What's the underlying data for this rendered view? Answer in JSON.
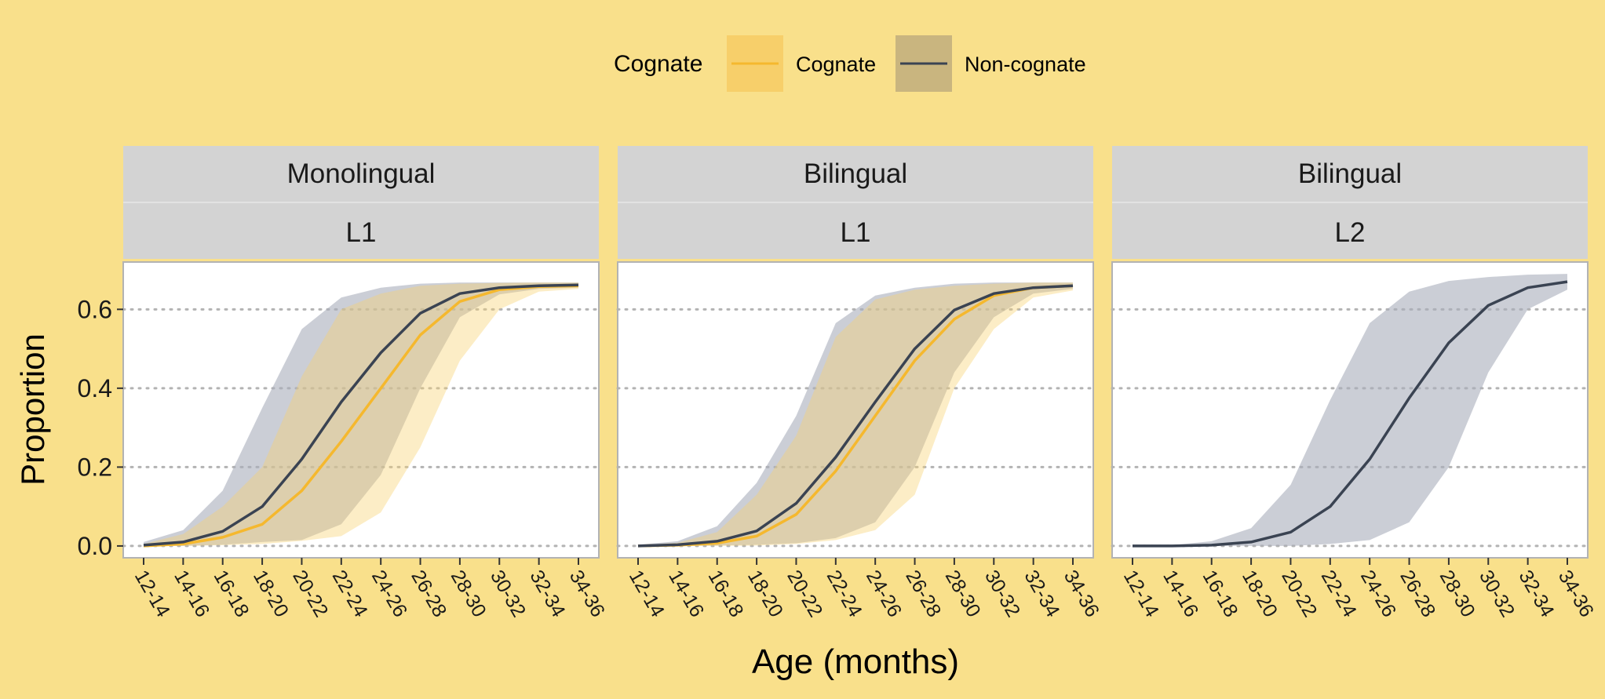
{
  "chart_data": {
    "type": "line",
    "xlabel": "Age (months)",
    "ylabel": "Proportion",
    "ylim": [
      -0.03,
      0.72
    ],
    "yticks": [
      0.0,
      0.2,
      0.4,
      0.6
    ],
    "ytick_labels": [
      "0.0",
      "0.2",
      "0.4",
      "0.6"
    ],
    "grid": "horizontal dotted",
    "categories": [
      "12-14",
      "14-16",
      "16-18",
      "18-20",
      "20-22",
      "22-24",
      "24-26",
      "26-28",
      "28-30",
      "30-32",
      "32-34",
      "34-36"
    ],
    "legend": {
      "title": "Cognate",
      "position": "top",
      "entries": [
        {
          "label": "Cognate",
          "line_color": "#f5b82e",
          "fill_color": "#f7cf6a"
        },
        {
          "label": "Non-cognate",
          "line_color": "#3a4352",
          "fill_color": "#c9b57f"
        }
      ]
    },
    "colors": {
      "background": "#f9e08b",
      "panel": "#ffffff",
      "strip": "#d3d3d3",
      "cognate_line": "#f5b82e",
      "cognate_band": "#fde7b4",
      "noncognate_line": "#3a4352",
      "noncognate_band": "#bfc5cf",
      "overlap_band": "#d6c89e"
    },
    "panels": [
      {
        "strip_top": "Monolingual",
        "strip_bottom": "L1",
        "series": [
          {
            "name": "Cognate",
            "values": [
              0.0,
              0.005,
              0.022,
              0.055,
              0.14,
              0.265,
              0.4,
              0.535,
              0.62,
              0.65,
              0.658,
              0.66
            ],
            "lower": [
              0.0,
              0.0,
              0.002,
              0.005,
              0.013,
              0.025,
              0.085,
              0.25,
              0.47,
              0.6,
              0.645,
              0.652
            ],
            "upper": [
              0.005,
              0.03,
              0.1,
              0.2,
              0.43,
              0.6,
              0.64,
              0.66,
              0.665,
              0.667,
              0.668,
              0.668
            ]
          },
          {
            "name": "Non-cognate",
            "values": [
              0.002,
              0.01,
              0.037,
              0.1,
              0.22,
              0.365,
              0.49,
              0.59,
              0.64,
              0.655,
              0.66,
              0.662
            ],
            "lower": [
              0.0,
              0.0,
              0.003,
              0.01,
              0.015,
              0.055,
              0.18,
              0.4,
              0.58,
              0.638,
              0.652,
              0.655
            ],
            "upper": [
              0.01,
              0.04,
              0.14,
              0.35,
              0.55,
              0.63,
              0.655,
              0.665,
              0.668,
              0.668,
              0.668,
              0.668
            ]
          }
        ]
      },
      {
        "strip_top": "Bilingual",
        "strip_bottom": "L1",
        "series": [
          {
            "name": "Cognate",
            "values": [
              0.0,
              0.002,
              0.007,
              0.025,
              0.08,
              0.19,
              0.33,
              0.47,
              0.575,
              0.635,
              0.655,
              0.66
            ],
            "lower": [
              0.0,
              0.0,
              0.0,
              0.001,
              0.005,
              0.015,
              0.04,
              0.13,
              0.4,
              0.55,
              0.63,
              0.648
            ],
            "upper": [
              0.002,
              0.008,
              0.035,
              0.13,
              0.28,
              0.53,
              0.625,
              0.65,
              0.66,
              0.665,
              0.668,
              0.668
            ]
          },
          {
            "name": "Non-cognate",
            "values": [
              0.0,
              0.003,
              0.012,
              0.038,
              0.108,
              0.225,
              0.365,
              0.5,
              0.598,
              0.64,
              0.655,
              0.66
            ],
            "lower": [
              0.0,
              0.0,
              0.001,
              0.003,
              0.007,
              0.02,
              0.06,
              0.2,
              0.44,
              0.58,
              0.64,
              0.652
            ],
            "upper": [
              0.003,
              0.012,
              0.05,
              0.16,
              0.33,
              0.565,
              0.635,
              0.655,
              0.665,
              0.668,
              0.668,
              0.668
            ]
          }
        ]
      },
      {
        "strip_top": "Bilingual",
        "strip_bottom": "L2",
        "series": [
          {
            "name": "Non-cognate",
            "values": [
              0.0,
              0.0,
              0.002,
              0.01,
              0.035,
              0.1,
              0.22,
              0.375,
              0.515,
              0.61,
              0.655,
              0.67
            ],
            "lower": [
              0.0,
              0.0,
              0.0,
              0.0,
              0.0,
              0.005,
              0.015,
              0.06,
              0.2,
              0.44,
              0.6,
              0.65
            ],
            "upper": [
              0.0,
              0.002,
              0.012,
              0.045,
              0.155,
              0.37,
              0.565,
              0.645,
              0.672,
              0.682,
              0.688,
              0.69
            ]
          }
        ]
      }
    ]
  }
}
